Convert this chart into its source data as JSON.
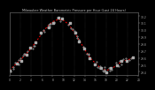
{
  "title": "Milwaukee Weather Barometric Pressure per Hour (Last 24 Hours)",
  "ylim": [
    29.35,
    30.25
  ],
  "xlim": [
    0,
    24
  ],
  "yticks": [
    29.4,
    29.5,
    29.6,
    29.7,
    29.8,
    29.9,
    30.0,
    30.1,
    30.2
  ],
  "ytick_labels": [
    "29.4",
    "29.5",
    "29.6",
    "29.7",
    "29.8",
    "29.9",
    "30.0",
    "30.1",
    "30.2"
  ],
  "xticks": [
    0,
    2,
    4,
    6,
    8,
    10,
    12,
    14,
    16,
    18,
    20,
    22,
    24
  ],
  "xtick_labels": [
    "0",
    "2",
    "4",
    "6",
    "8",
    "10",
    "12",
    "14",
    "16",
    "18",
    "20",
    "22",
    "24"
  ],
  "background_color": "#000000",
  "plot_bg_color": "#000000",
  "grid_color": "#555555",
  "line_color": "#ff0000",
  "marker_color": "#aaaaaa",
  "title_color": "#cccccc",
  "tick_color": "#aaaaaa",
  "hours": [
    0,
    1,
    2,
    3,
    4,
    5,
    6,
    7,
    8,
    9,
    10,
    11,
    12,
    13,
    14,
    15,
    16,
    17,
    18,
    19,
    20,
    21,
    22,
    23
  ],
  "pressure": [
    29.42,
    29.5,
    29.57,
    29.65,
    29.74,
    29.84,
    29.95,
    30.05,
    30.12,
    30.15,
    30.14,
    30.08,
    29.97,
    29.85,
    29.72,
    29.6,
    29.52,
    29.45,
    29.42,
    29.44,
    29.5,
    29.55,
    29.57,
    29.6
  ],
  "extra_noise_seed": 42,
  "extra_points": 60
}
